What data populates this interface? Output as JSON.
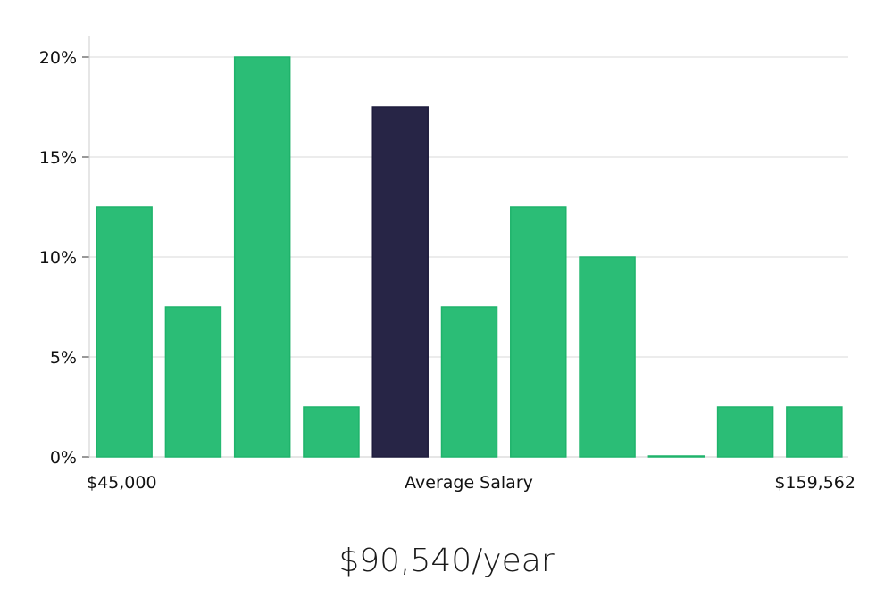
{
  "chart_data": {
    "type": "bar",
    "title": "",
    "xlabel": "Average Salary",
    "ylabel": "",
    "x_min_label": "$45,000",
    "x_max_label": "$159,562",
    "y_ticks": [
      "0%",
      "5%",
      "10%",
      "15%",
      "20%"
    ],
    "ylim": [
      0,
      20
    ],
    "unit": "%",
    "values": [
      12.5,
      7.5,
      20,
      2.5,
      17.5,
      7.5,
      12.5,
      10,
      0,
      2.5,
      2.5
    ],
    "highlight_index": 4,
    "grid": true,
    "legend": "none"
  },
  "colors": {
    "bar": "#2bbd76",
    "bar_stroke": "#1fb36b",
    "highlight": "#272546",
    "grid": "#d9d9d9",
    "axis": "#cccccc"
  },
  "average_salary": "$90,540/year"
}
